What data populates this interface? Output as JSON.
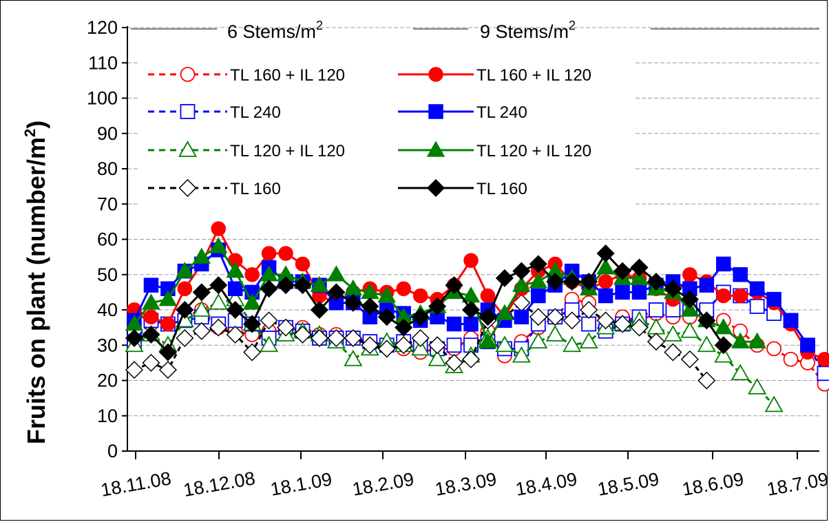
{
  "chart_data": {
    "type": "line",
    "ylabel": "Fruits on plant (number/m2)",
    "ylabel_main": "Fruits on plant (number/m",
    "ylabel_sup": "2",
    "ylabel_close": ")",
    "ylim": [
      0,
      120
    ],
    "yticks": [
      "0",
      "10",
      "20",
      "30",
      "40",
      "50",
      "60",
      "70",
      "80",
      "90",
      "100",
      "110",
      "120"
    ],
    "xtick_labels": [
      "18.11.08",
      "18.12.08",
      "18.1.09",
      "18.2.09",
      "18.3.09",
      "18.4.09",
      "18.5.09",
      "18.6.09",
      "18.7.09"
    ],
    "grid": "horizontal dashed",
    "legend_headers": {
      "left": {
        "text": "6 Stems/m",
        "sup": "2"
      },
      "right": {
        "text": "9 Stems/m",
        "sup": "2"
      }
    },
    "x_index": [
      0,
      1,
      2,
      3,
      4,
      5,
      6,
      7,
      8,
      9,
      10,
      11,
      12,
      13,
      14,
      15,
      16,
      17,
      18,
      19,
      20,
      21,
      22,
      23,
      24,
      25,
      26,
      27,
      28,
      29,
      30,
      31,
      32,
      33,
      34,
      35,
      36,
      37,
      38,
      39,
      40,
      41
    ],
    "series": [
      {
        "name": "TL 160 + IL 120",
        "group": "6 Stems/m2",
        "color": "#ff0000",
        "marker": "circle",
        "filled": false,
        "dashed": true,
        "values": [
          40,
          36,
          36,
          38,
          40,
          35,
          34,
          33,
          34,
          34,
          35,
          33,
          33,
          32,
          31,
          30,
          29,
          28,
          29,
          29,
          32,
          34,
          27,
          31,
          35,
          38,
          43,
          42,
          35,
          38,
          37,
          39,
          38,
          38,
          38,
          37,
          34,
          30,
          29,
          26,
          25,
          19
        ]
      },
      {
        "name": "TL 240",
        "group": "6 Stems/m2",
        "color": "#0000ff",
        "marker": "square",
        "filled": false,
        "dashed": true,
        "values": [
          31,
          37,
          36,
          37,
          38,
          36,
          37,
          36,
          32,
          35,
          34,
          32,
          32,
          32,
          31,
          30,
          31,
          30,
          29,
          30,
          30,
          31,
          29,
          29,
          36,
          38,
          40,
          36,
          34,
          36,
          38,
          40,
          40,
          41,
          40,
          45,
          44,
          41,
          39,
          37,
          30,
          22
        ]
      },
      {
        "name": "TL 120 + IL 120",
        "group": "6 Stems/m2",
        "color": "#008000",
        "marker": "triangle",
        "filled": false,
        "dashed": true,
        "values": [
          30,
          33,
          30,
          37,
          40,
          42,
          43,
          36,
          30,
          33,
          34,
          33,
          31,
          26,
          29,
          31,
          30,
          29,
          26,
          24,
          27,
          32,
          30,
          27,
          31,
          33,
          30,
          31,
          35,
          36,
          37,
          35,
          33,
          34,
          30,
          27,
          22,
          18,
          13
        ]
      },
      {
        "name": "TL 160",
        "group": "6 Stems/m2",
        "color": "#000000",
        "marker": "diamond",
        "filled": false,
        "dashed": true,
        "values": [
          23,
          25,
          23,
          32,
          34,
          35,
          33,
          28,
          37,
          35,
          33,
          32,
          32,
          32,
          30,
          29,
          30,
          32,
          30,
          25,
          26,
          37,
          38,
          42,
          38,
          38,
          37,
          40,
          37,
          36,
          35,
          31,
          28,
          26,
          20
        ]
      },
      {
        "name": "TL 160 + IL 120",
        "group": "9 Stems/m2",
        "color": "#ff0000",
        "marker": "circle",
        "filled": true,
        "dashed": false,
        "values": [
          40,
          38,
          36,
          46,
          53,
          63,
          54,
          50,
          56,
          56,
          53,
          44,
          42,
          45,
          46,
          45,
          46,
          44,
          43,
          47,
          54,
          44,
          38,
          46,
          51,
          53,
          48,
          46,
          48,
          50,
          49,
          46,
          43,
          50,
          48,
          44,
          44,
          45,
          42,
          36,
          28,
          26
        ]
      },
      {
        "name": "TL 240",
        "group": "9 Stems/m2",
        "color": "#0000ff",
        "marker": "square",
        "filled": true,
        "dashed": false,
        "values": [
          37,
          47,
          46,
          51,
          53,
          57,
          46,
          45,
          52,
          48,
          48,
          47,
          42,
          42,
          38,
          40,
          39,
          37,
          38,
          36,
          36,
          40,
          37,
          38,
          44,
          47,
          51,
          48,
          44,
          45,
          45,
          47,
          48,
          46,
          47,
          53,
          50,
          46,
          43,
          37,
          30
        ]
      },
      {
        "name": "TL 120 + IL 120",
        "group": "9 Stems/m2",
        "color": "#008000",
        "marker": "triangle",
        "filled": true,
        "dashed": false,
        "values": [
          36,
          42,
          43,
          51,
          55,
          58,
          51,
          42,
          50,
          50,
          48,
          47,
          50,
          46,
          45,
          44,
          38,
          39,
          41,
          45,
          44,
          31,
          39,
          47,
          48,
          51,
          49,
          46,
          52,
          49,
          49,
          46,
          45,
          40,
          37,
          35,
          31,
          31
        ]
      },
      {
        "name": "TL 160",
        "group": "9 Stems/m2",
        "color": "#000000",
        "marker": "diamond",
        "filled": true,
        "dashed": false,
        "values": [
          32,
          33,
          28,
          40,
          45,
          47,
          40,
          36,
          46,
          47,
          47,
          40,
          45,
          42,
          41,
          38,
          35,
          38,
          41,
          47,
          40,
          38,
          49,
          51,
          53,
          48,
          48,
          48,
          56,
          51,
          52,
          48,
          46,
          43,
          37,
          30
        ]
      }
    ]
  }
}
